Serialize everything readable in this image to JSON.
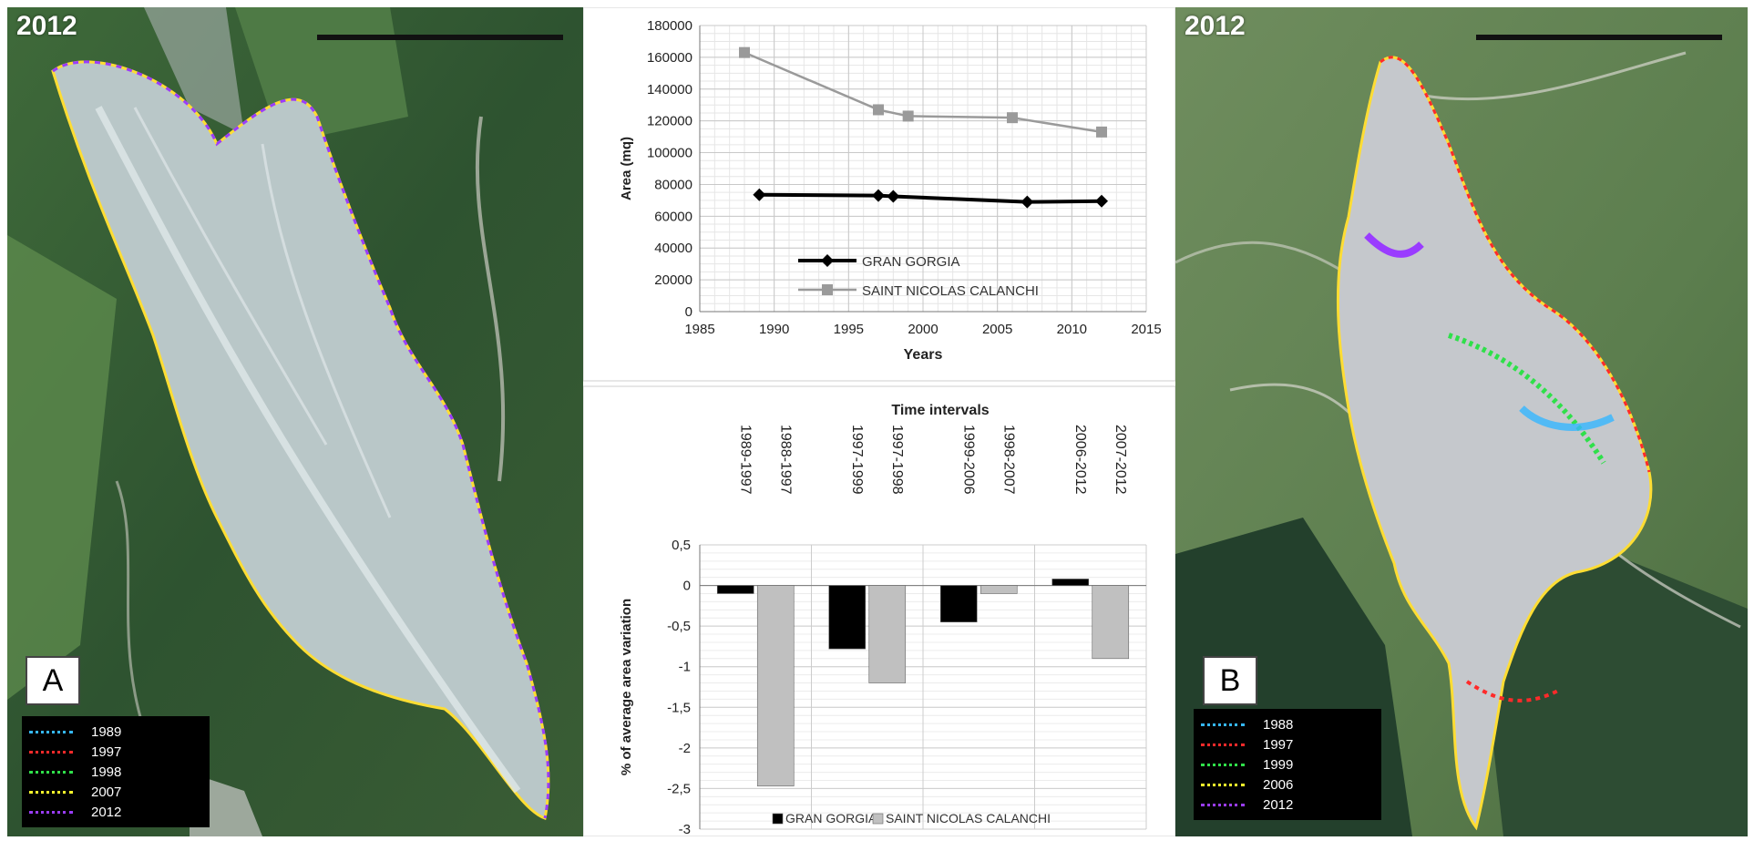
{
  "panel_a": {
    "year": "2012",
    "letter": "A",
    "legend": [
      {
        "label": "1989",
        "color": "#35b7ff"
      },
      {
        "label": "1997",
        "color": "#ff2a2a"
      },
      {
        "label": "1998",
        "color": "#2fe04a"
      },
      {
        "label": "2007",
        "color": "#ffff2a"
      },
      {
        "label": "2012",
        "color": "#9a3cff"
      }
    ]
  },
  "panel_b": {
    "year": "2012",
    "letter": "B",
    "legend": [
      {
        "label": "1988",
        "color": "#35b7ff"
      },
      {
        "label": "1997",
        "color": "#ff2a2a"
      },
      {
        "label": "1999",
        "color": "#2fe04a"
      },
      {
        "label": "2006",
        "color": "#ffff2a"
      },
      {
        "label": "2012",
        "color": "#9a3cff"
      }
    ]
  },
  "chart_data": [
    {
      "type": "line",
      "title": "",
      "xlabel": "Years",
      "ylabel": "Area (mq)",
      "xlim": [
        1985,
        2015
      ],
      "ylim": [
        0,
        180000
      ],
      "x_ticks": [
        "1985",
        "1990",
        "1995",
        "2000",
        "2005",
        "2010",
        "2015"
      ],
      "y_ticks": [
        "0",
        "20000",
        "40000",
        "60000",
        "80000",
        "100000",
        "120000",
        "140000",
        "160000",
        "180000"
      ],
      "grid": true,
      "legend_position": "bottom-left",
      "series": [
        {
          "name": "GRAN GORGIA",
          "color": "#000000",
          "x": [
            1989,
            1997,
            1998,
            2007,
            2012
          ],
          "y": [
            73500,
            73000,
            72500,
            69000,
            69500
          ]
        },
        {
          "name": "SAINT NICOLAS CALANCHI",
          "color": "#9a9a9a",
          "x": [
            1988,
            1997,
            1999,
            2006,
            2012
          ],
          "y": [
            163000,
            127000,
            123000,
            122000,
            113000
          ]
        }
      ]
    },
    {
      "type": "bar",
      "title": "Time intervals",
      "xlabel": "",
      "ylabel": "% of average area variation",
      "ylim": [
        -3,
        0.5
      ],
      "y_ticks": [
        "0,5",
        "0",
        "-0,5",
        "-1",
        "-1,5",
        "-2",
        "-2,5",
        "-3"
      ],
      "grid": true,
      "legend_position": "bottom",
      "categories": [
        [
          "1989-1997",
          "1988-1997"
        ],
        [
          "1997-1999",
          "1997-1998"
        ],
        [
          "1999-2006",
          "1998-2007"
        ],
        [
          "2006-2012",
          "2007-2012"
        ]
      ],
      "series": [
        {
          "name": "GRAN GORGIA",
          "color": "#000000",
          "values": [
            -0.1,
            -0.78,
            -0.45,
            0.08
          ]
        },
        {
          "name": "SAINT NICOLAS CALANCHI",
          "color": "#c0c0c0",
          "values": [
            -2.47,
            -1.2,
            -0.1,
            -0.9
          ]
        }
      ]
    }
  ]
}
